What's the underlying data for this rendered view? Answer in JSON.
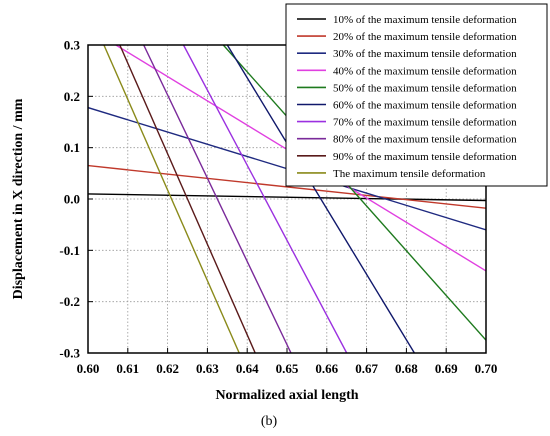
{
  "chart_data": {
    "type": "line",
    "title": "",
    "xlabel": "Normalized axial length",
    "ylabel": "Displacement in X direction / mm",
    "xlim": [
      0.6,
      0.7
    ],
    "ylim": [
      -0.3,
      0.3
    ],
    "x_ticks": [
      "0.60",
      "0.61",
      "0.62",
      "0.63",
      "0.64",
      "0.65",
      "0.66",
      "0.67",
      "0.68",
      "0.69",
      "0.70"
    ],
    "y_ticks": [
      "0.3",
      "0.2",
      "0.1",
      "0.0",
      "-0.1",
      "-0.2",
      "-0.3"
    ],
    "grid": "dotted",
    "legend_position": "top-right",
    "series": [
      {
        "name": "10% of the maximum tensile deformation",
        "color": "#000000",
        "points": [
          [
            0.6,
            0.01
          ],
          [
            0.7,
            -0.003
          ]
        ]
      },
      {
        "name": "20% of the maximum tensile deformation",
        "color": "#c0392b",
        "points": [
          [
            0.6,
            0.065
          ],
          [
            0.7,
            -0.018
          ]
        ]
      },
      {
        "name": "30% of the maximum tensile deformation",
        "color": "#1f2a80",
        "points": [
          [
            0.6,
            0.178
          ],
          [
            0.7,
            -0.06
          ]
        ]
      },
      {
        "name": "40% of the maximum tensile deformation",
        "color": "#e040e0",
        "points": [
          [
            0.607,
            0.3
          ],
          [
            0.7,
            -0.14
          ]
        ]
      },
      {
        "name": "50% of the maximum tensile deformation",
        "color": "#1e7a1e",
        "points": [
          [
            0.634,
            0.3
          ],
          [
            0.7,
            -0.275
          ]
        ]
      },
      {
        "name": "60% of the maximum tensile deformation",
        "color": "#10186b",
        "points": [
          [
            0.635,
            0.3
          ],
          [
            0.682,
            -0.3
          ]
        ]
      },
      {
        "name": "70% of the maximum tensile deformation",
        "color": "#9b30e0",
        "points": [
          [
            0.624,
            0.3
          ],
          [
            0.665,
            -0.3
          ]
        ]
      },
      {
        "name": "80% of the maximum tensile deformation",
        "color": "#7a2a9a",
        "points": [
          [
            0.614,
            0.3
          ],
          [
            0.651,
            -0.3
          ]
        ]
      },
      {
        "name": "90% of the maximum tensile deformation",
        "color": "#5a1a1a",
        "points": [
          [
            0.608,
            0.3
          ],
          [
            0.642,
            -0.3
          ]
        ]
      },
      {
        "name": "The maximum tensile deformation",
        "color": "#8a8a1a",
        "points": [
          [
            0.604,
            0.3
          ],
          [
            0.638,
            -0.3
          ]
        ]
      }
    ]
  },
  "caption": "(b)"
}
